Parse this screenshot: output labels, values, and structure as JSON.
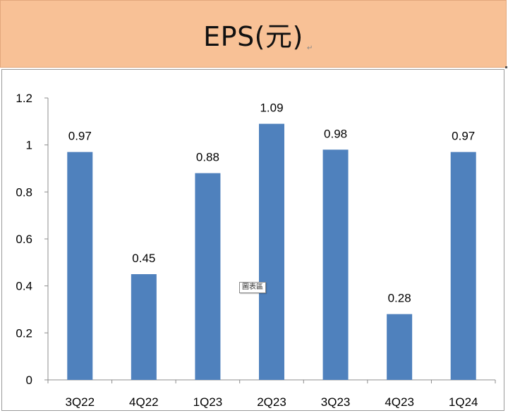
{
  "header": {
    "title": "EPS(元)",
    "paragraph_mark": "↵"
  },
  "tooltip": {
    "text": "圖表區"
  },
  "chart_data": {
    "type": "bar",
    "title": "EPS(元)",
    "categories": [
      "3Q22",
      "4Q22",
      "1Q23",
      "2Q23",
      "3Q23",
      "4Q23",
      "1Q24"
    ],
    "series": [
      {
        "values": [
          0.97,
          0.45,
          0.88,
          1.09,
          0.98,
          0.28,
          0.97
        ]
      }
    ],
    "data_labels": [
      "0.97",
      "0.45",
      "0.88",
      "1.09",
      "0.98",
      "0.28",
      "0.97"
    ],
    "ylim": [
      0,
      1.2
    ],
    "yticks": [
      0,
      0.2,
      0.4,
      0.6,
      0.8,
      1,
      1.2
    ],
    "ytick_labels": [
      "0",
      "0.2",
      "0.4",
      "0.6",
      "0.8",
      "1",
      "1.2"
    ],
    "xlabel": "",
    "ylabel": "",
    "grid": false,
    "legend": "none",
    "bar_color": "#4f81bd",
    "axis_color": "#8c8c8c"
  }
}
